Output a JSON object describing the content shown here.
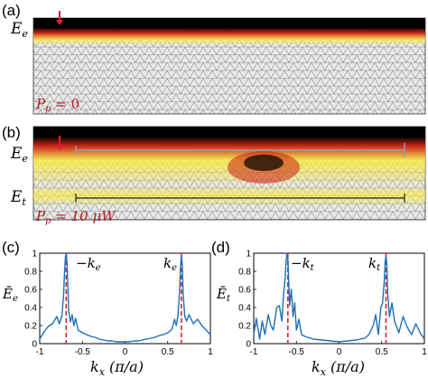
{
  "panels": {
    "a": {
      "label": "(a)",
      "edge_label": "E",
      "edge_sub": "e",
      "pump_prefix": "P",
      "pump_sub": "p",
      "pump_value": " = 0"
    },
    "b": {
      "label": "(b)",
      "edge_label_top": "E",
      "edge_sub_top": "e",
      "edge_label_bottom": "E",
      "edge_sub_bottom": "t",
      "pump_prefix": "P",
      "pump_sub": "p",
      "pump_value": " = 10 μW"
    },
    "c": {
      "label": "(c)",
      "ylabel_main": "Ē",
      "ylabel_sub": "e",
      "ann_left": "−k",
      "ann_left_sub": "e",
      "ann_right": "k",
      "ann_right_sub": "e",
      "xlabel_main": "k",
      "xlabel_sub": "x",
      "xlabel_unit": " (π/a)"
    },
    "d": {
      "label": "(d)",
      "ylabel_main": "Ē",
      "ylabel_sub": "t",
      "ann_left": "−k",
      "ann_left_sub": "t",
      "ann_right": "k",
      "ann_right_sub": "t",
      "xlabel_main": "k",
      "xlabel_sub": "x",
      "xlabel_unit": " (π/a)"
    }
  },
  "colors": {
    "lattice_bg": "#e8e8e8",
    "lattice_line": "#8a8a8a",
    "hot_dark": "#000000",
    "hot_red": "#cc1f0f",
    "hot_yellow": "#f6e84a",
    "spectrum_line": "#1f6fb5",
    "peak_marker": "#e0202a",
    "arrow_gray": "#9aa0a6"
  },
  "chart_data": [
    {
      "type": "line",
      "title": "",
      "xlabel": "k_x (π/a)",
      "ylabel": "Ē_e",
      "xlim": [
        -1,
        1
      ],
      "ylim": [
        0,
        1
      ],
      "xticks": [
        "-1",
        "-0.5",
        "0",
        "0.5",
        "1"
      ],
      "yticks": [
        "0",
        "0.2",
        "0.4",
        "0.6",
        "0.8",
        "1"
      ],
      "peaks": [
        -0.69,
        0.66
      ],
      "series": [
        {
          "x": [
            -1,
            -0.95,
            -0.9,
            -0.85,
            -0.8,
            -0.77,
            -0.74,
            -0.72,
            -0.71,
            -0.7,
            -0.69,
            -0.68,
            -0.67,
            -0.66,
            -0.64,
            -0.62,
            -0.6,
            -0.58,
            -0.55,
            -0.5,
            -0.45,
            -0.4,
            -0.35,
            -0.3,
            -0.25,
            -0.2,
            -0.15,
            -0.1,
            -0.05,
            0,
            0.05,
            0.1,
            0.15,
            0.2,
            0.25,
            0.3,
            0.35,
            0.4,
            0.45,
            0.5,
            0.55,
            0.58,
            0.6,
            0.62,
            0.64,
            0.65,
            0.66,
            0.67,
            0.68,
            0.7,
            0.72,
            0.75,
            0.8,
            0.85,
            0.9,
            0.95,
            1
          ],
          "values": [
            0.05,
            0.13,
            0.19,
            0.22,
            0.3,
            0.22,
            0.31,
            0.55,
            0.78,
            0.95,
            1.0,
            0.9,
            0.62,
            0.35,
            0.24,
            0.32,
            0.2,
            0.28,
            0.15,
            0.12,
            0.1,
            0.08,
            0.07,
            0.05,
            0.04,
            0.03,
            0.03,
            0.02,
            0.02,
            0.02,
            0.02,
            0.03,
            0.03,
            0.04,
            0.05,
            0.06,
            0.07,
            0.09,
            0.1,
            0.12,
            0.16,
            0.27,
            0.2,
            0.31,
            0.6,
            0.85,
            0.97,
            0.88,
            0.55,
            0.3,
            0.25,
            0.32,
            0.22,
            0.27,
            0.2,
            0.15,
            0.1
          ]
        }
      ]
    },
    {
      "type": "line",
      "title": "",
      "xlabel": "k_x (π/a)",
      "ylabel": "Ē_t",
      "xlim": [
        -1,
        1
      ],
      "ylim": [
        0,
        1
      ],
      "xticks": [
        "-1",
        "-0.5",
        "0",
        "0.5",
        "1"
      ],
      "yticks": [
        "0",
        "0.2",
        "0.4",
        "0.6",
        "0.8",
        "1"
      ],
      "peaks": [
        -0.6,
        0.55
      ],
      "series": [
        {
          "x": [
            -1,
            -0.97,
            -0.93,
            -0.9,
            -0.87,
            -0.83,
            -0.8,
            -0.77,
            -0.73,
            -0.7,
            -0.67,
            -0.65,
            -0.63,
            -0.62,
            -0.61,
            -0.6,
            -0.59,
            -0.58,
            -0.56,
            -0.54,
            -0.52,
            -0.5,
            -0.47,
            -0.44,
            -0.4,
            -0.3,
            -0.2,
            -0.1,
            0,
            0.1,
            0.2,
            0.3,
            0.35,
            0.4,
            0.43,
            0.46,
            0.49,
            0.51,
            0.53,
            0.54,
            0.55,
            0.56,
            0.57,
            0.59,
            0.62,
            0.65,
            0.7,
            0.75,
            0.8,
            0.85,
            0.9,
            0.95,
            1
          ],
          "values": [
            0.1,
            0.28,
            0.05,
            0.25,
            0.1,
            0.32,
            0.2,
            0.15,
            0.4,
            0.42,
            0.25,
            0.55,
            0.75,
            0.92,
            1.0,
            0.95,
            0.7,
            0.42,
            0.6,
            0.3,
            0.45,
            0.15,
            0.27,
            0.1,
            0.08,
            0.05,
            0.04,
            0.03,
            0.02,
            0.03,
            0.04,
            0.06,
            0.1,
            0.2,
            0.32,
            0.1,
            0.4,
            0.45,
            0.7,
            0.9,
            0.97,
            0.88,
            0.55,
            0.3,
            0.45,
            0.25,
            0.12,
            0.3,
            0.18,
            0.1,
            0.22,
            0.12,
            0.05
          ]
        }
      ]
    }
  ]
}
